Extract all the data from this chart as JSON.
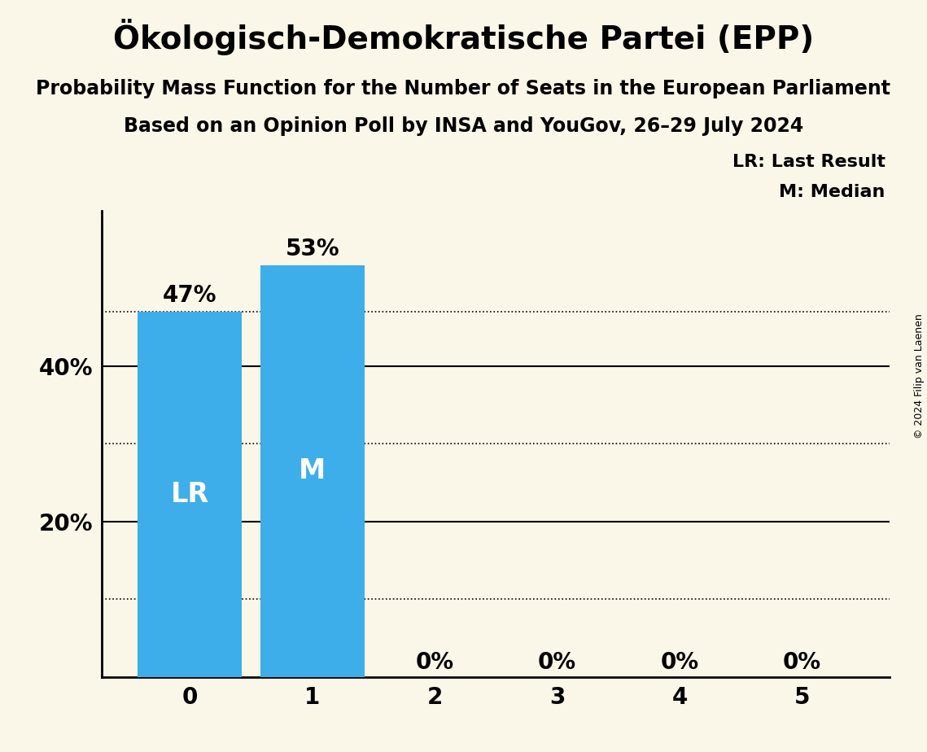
{
  "title": "Ökologisch-Demokratische Partei (EPP)",
  "subtitle1": "Probability Mass Function for the Number of Seats in the European Parliament",
  "subtitle2": "Based on an Opinion Poll by INSA and YouGov, 26–29 July 2024",
  "copyright": "© 2024 Filip van Laenen",
  "categories": [
    0,
    1,
    2,
    3,
    4,
    5
  ],
  "values": [
    0.47,
    0.53,
    0.0,
    0.0,
    0.0,
    0.0
  ],
  "bar_color": "#3daee9",
  "background_color": "#faf6e8",
  "bar_labels": [
    "LR",
    "M",
    "",
    "",
    "",
    ""
  ],
  "value_labels": [
    "47%",
    "53%",
    "0%",
    "0%",
    "0%",
    "0%"
  ],
  "ylim": [
    0,
    0.6
  ],
  "yticks": [
    0.2,
    0.4
  ],
  "ytick_labels": [
    "20%",
    "40%"
  ],
  "solid_grid_values": [
    0.2,
    0.4
  ],
  "dotted_grid_values": [
    0.47,
    0.3,
    0.1
  ],
  "legend_lr": "LR: Last Result",
  "legend_m": "M: Median",
  "title_fontsize": 28,
  "subtitle_fontsize": 17,
  "bar_label_fontsize": 24,
  "value_label_fontsize": 20,
  "axis_label_fontsize": 20,
  "legend_fontsize": 16,
  "copyright_fontsize": 9
}
